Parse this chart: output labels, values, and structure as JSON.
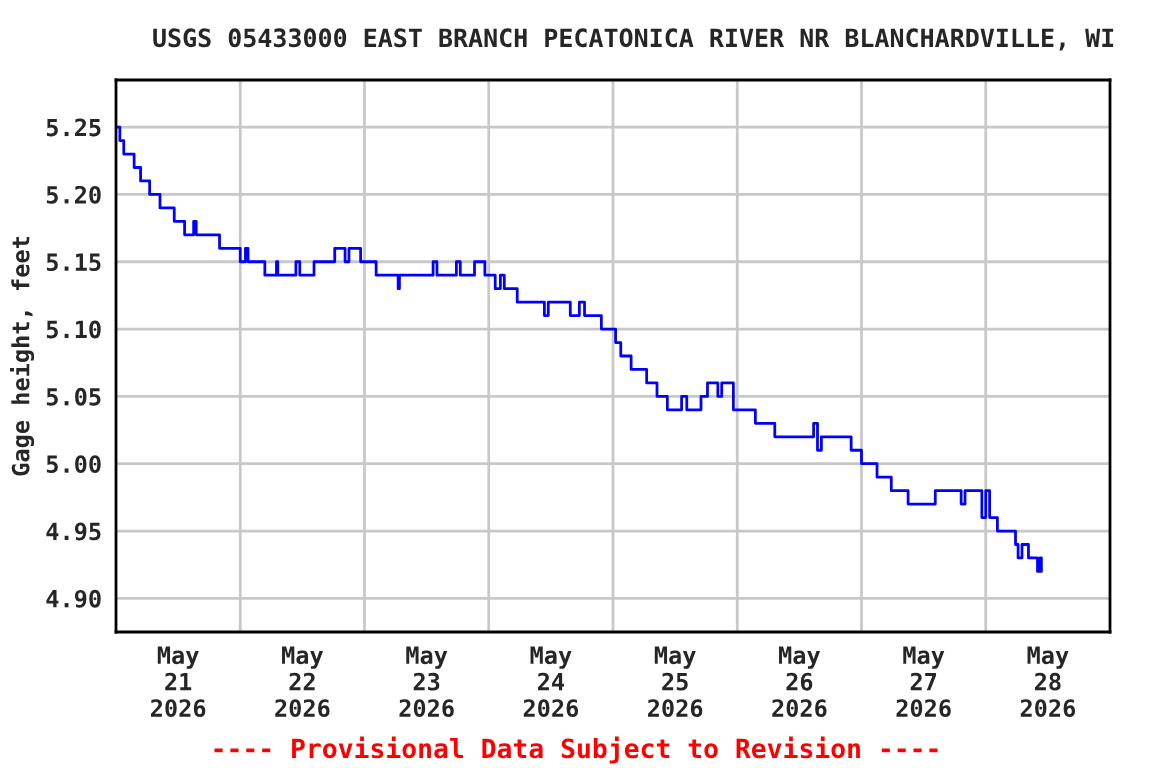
{
  "chart_data": {
    "type": "step",
    "title": "USGS 05433000 EAST BRANCH PECATONICA RIVER NR BLANCHARDVILLE, WI",
    "ylabel": "Gage height, feet",
    "annotations": [
      "---- Provisional Data Subject to Revision ----"
    ],
    "x": [
      "2026-05-21T00:00",
      "2026-05-21T00:45",
      "2026-05-21T01:30",
      "2026-05-21T03:30",
      "2026-05-21T04:45",
      "2026-05-21T06:30",
      "2026-05-21T08:30",
      "2026-05-21T11:15",
      "2026-05-21T13:15",
      "2026-05-21T15:00",
      "2026-05-21T15:30",
      "2026-05-21T20:00",
      "2026-05-22T00:00",
      "2026-05-22T01:00",
      "2026-05-22T01:30",
      "2026-05-22T04:45",
      "2026-05-22T07:00",
      "2026-05-22T07:15",
      "2026-05-22T10:45",
      "2026-05-22T11:30",
      "2026-05-22T14:15",
      "2026-05-22T18:15",
      "2026-05-22T20:15",
      "2026-05-22T21:00",
      "2026-05-22T23:15",
      "2026-05-23T02:15",
      "2026-05-23T06:30",
      "2026-05-23T06:45",
      "2026-05-23T13:15",
      "2026-05-23T14:00",
      "2026-05-23T17:45",
      "2026-05-23T18:30",
      "2026-05-23T21:15",
      "2026-05-23T23:15",
      "2026-05-24T01:15",
      "2026-05-24T02:15",
      "2026-05-24T03:00",
      "2026-05-24T05:30",
      "2026-05-24T10:45",
      "2026-05-24T11:30",
      "2026-05-24T15:45",
      "2026-05-24T17:30",
      "2026-05-24T18:30",
      "2026-05-24T21:45",
      "2026-05-25T00:30",
      "2026-05-25T01:30",
      "2026-05-25T03:30",
      "2026-05-25T06:30",
      "2026-05-25T08:30",
      "2026-05-25T10:30",
      "2026-05-25T13:15",
      "2026-05-25T14:15",
      "2026-05-25T17:00",
      "2026-05-25T18:15",
      "2026-05-25T20:15",
      "2026-05-25T21:00",
      "2026-05-25T23:15",
      "2026-05-26T03:30",
      "2026-05-26T07:15",
      "2026-05-26T14:45",
      "2026-05-26T15:30",
      "2026-05-26T16:15",
      "2026-05-26T20:00",
      "2026-05-26T22:00",
      "2026-05-27T00:00",
      "2026-05-27T03:00",
      "2026-05-27T05:45",
      "2026-05-27T09:00",
      "2026-05-27T14:15",
      "2026-05-27T19:15",
      "2026-05-27T20:00",
      "2026-05-27T23:15",
      "2026-05-28T00:00",
      "2026-05-28T00:45",
      "2026-05-28T02:15",
      "2026-05-28T05:45",
      "2026-05-28T06:15",
      "2026-05-28T07:00",
      "2026-05-28T08:15",
      "2026-05-28T10:00",
      "2026-05-28T10:30",
      "2026-05-28T10:45"
    ],
    "series": [
      {
        "color": "#0000ff",
        "values": [
          5.25,
          5.24,
          5.23,
          5.22,
          5.21,
          5.2,
          5.19,
          5.18,
          5.17,
          5.18,
          5.17,
          5.16,
          5.15,
          5.16,
          5.15,
          5.14,
          5.15,
          5.14,
          5.15,
          5.14,
          5.15,
          5.16,
          5.15,
          5.16,
          5.15,
          5.14,
          5.13,
          5.14,
          5.15,
          5.14,
          5.15,
          5.14,
          5.15,
          5.14,
          5.13,
          5.14,
          5.13,
          5.12,
          5.11,
          5.12,
          5.11,
          5.12,
          5.11,
          5.1,
          5.09,
          5.08,
          5.07,
          5.06,
          5.05,
          5.04,
          5.05,
          5.04,
          5.05,
          5.06,
          5.05,
          5.06,
          5.04,
          5.03,
          5.02,
          5.03,
          5.01,
          5.02,
          5.02,
          5.01,
          5.0,
          4.99,
          4.98,
          4.97,
          4.98,
          4.97,
          4.98,
          4.96,
          4.98,
          4.96,
          4.95,
          4.94,
          4.93,
          4.94,
          4.93,
          4.92,
          4.93,
          4.92
        ]
      }
    ],
    "xlim": [
      "2026-05-21T00:00",
      "2026-05-29T00:00"
    ],
    "xticks": [
      {
        "value": "2026-05-21T12:00",
        "label": "May\n21\n2026"
      },
      {
        "value": "2026-05-22T00:00",
        "label": null
      },
      {
        "value": "2026-05-22T12:00",
        "label": "May\n22\n2026"
      },
      {
        "value": "2026-05-23T00:00",
        "label": null
      },
      {
        "value": "2026-05-23T12:00",
        "label": "May\n23\n2026"
      },
      {
        "value": "2026-05-24T00:00",
        "label": null
      },
      {
        "value": "2026-05-24T12:00",
        "label": "May\n24\n2026"
      },
      {
        "value": "2026-05-25T00:00",
        "label": null
      },
      {
        "value": "2026-05-25T12:00",
        "label": "May\n25\n2026"
      },
      {
        "value": "2026-05-26T00:00",
        "label": null
      },
      {
        "value": "2026-05-26T12:00",
        "label": "May\n26\n2026"
      },
      {
        "value": "2026-05-27T00:00",
        "label": null
      },
      {
        "value": "2026-05-27T12:00",
        "label": "May\n27\n2026"
      },
      {
        "value": "2026-05-28T00:00",
        "label": null
      },
      {
        "value": "2026-05-28T12:00",
        "label": "May\n28\n2026"
      }
    ],
    "ylim": [
      4.875,
      5.285
    ],
    "yticks": [
      {
        "value": 4.9,
        "label": "4.90"
      },
      {
        "value": 4.95,
        "label": "4.95"
      },
      {
        "value": 5.0,
        "label": "5.00"
      },
      {
        "value": 5.05,
        "label": "5.05"
      },
      {
        "value": 5.1,
        "label": "5.10"
      },
      {
        "value": 5.15,
        "label": "5.15"
      },
      {
        "value": 5.2,
        "label": "5.20"
      },
      {
        "value": 5.25,
        "label": "5.25"
      }
    ],
    "grid": true
  }
}
